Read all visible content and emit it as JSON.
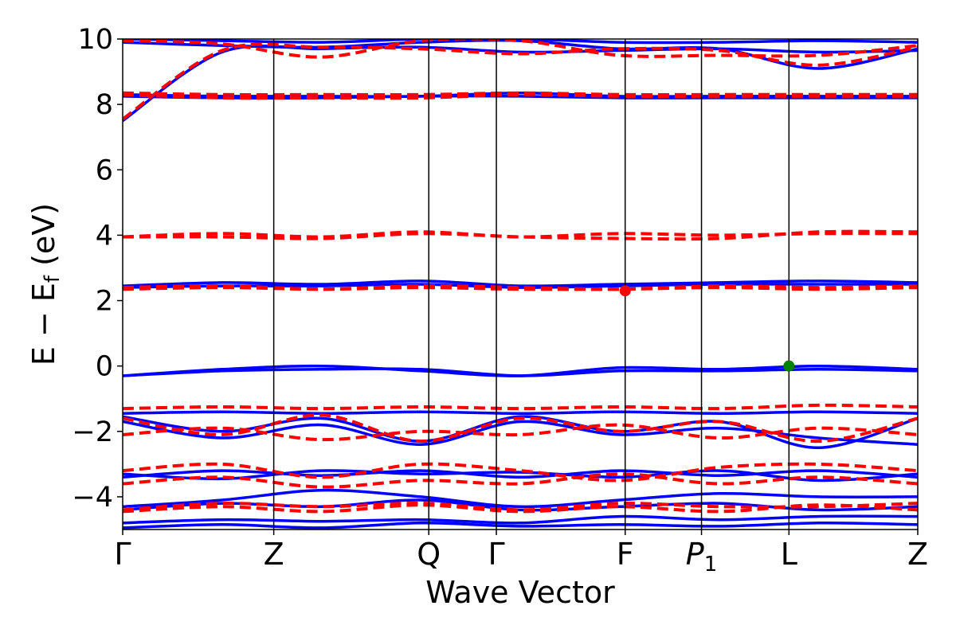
{
  "chart_data": {
    "type": "line",
    "title": "",
    "xlabel": "Wave Vector",
    "ylabel": "E − E",
    "ylabel_sub": "f",
    "ylabel_unit": " (eV)",
    "ylim": [
      -5,
      10
    ],
    "yticks": [
      -4,
      -2,
      0,
      2,
      4,
      6,
      8,
      10
    ],
    "ytick_labels": [
      "−4",
      "−2",
      "0",
      "2",
      "4",
      "6",
      "8",
      "10"
    ],
    "kpoints": [
      {
        "label": "Γ",
        "sub": "",
        "italic": false,
        "x": 0.0
      },
      {
        "label": "Z",
        "sub": "",
        "italic": false,
        "x": 1.9
      },
      {
        "label": "Q",
        "sub": "",
        "italic": false,
        "x": 3.85
      },
      {
        "label": "Γ",
        "sub": "",
        "italic": false,
        "x": 4.7
      },
      {
        "label": "F",
        "sub": "",
        "italic": false,
        "x": 6.32
      },
      {
        "label": "P",
        "sub": "1",
        "italic": true,
        "x": 7.28
      },
      {
        "label": "L",
        "sub": "",
        "italic": false,
        "x": 8.38
      },
      {
        "label": "Z",
        "sub": "",
        "italic": false,
        "x": 10.0
      }
    ],
    "colors": {
      "spin_up": "#0000ff",
      "spin_down": "#ff0000",
      "vbm": "#008000",
      "cbm": "#ff0000"
    },
    "series": [
      {
        "style": "solid",
        "color": "#0000ff",
        "values": [
          7.5,
          9.6,
          9.7,
          9.75,
          9.6,
          9.65,
          9.7,
          9.6,
          9.65
        ]
      },
      {
        "style": "solid",
        "color": "#0000ff",
        "values": [
          9.9,
          9.8,
          9.75,
          9.9,
          9.95,
          9.7,
          9.7,
          9.1,
          9.7
        ]
      },
      {
        "style": "solid",
        "color": "#0000ff",
        "values": [
          10.0,
          9.95,
          9.9,
          10.0,
          10.0,
          9.9,
          9.9,
          9.95,
          9.9
        ]
      },
      {
        "style": "solid",
        "color": "#0000ff",
        "values": [
          8.3,
          8.25,
          8.25,
          8.25,
          8.35,
          8.25,
          8.25,
          8.25,
          8.25
        ]
      },
      {
        "style": "solid",
        "color": "#0000ff",
        "values": [
          8.25,
          8.2,
          8.2,
          8.25,
          8.25,
          8.2,
          8.2,
          8.2,
          8.2
        ]
      },
      {
        "style": "solid",
        "color": "#0000ff",
        "values": [
          2.45,
          2.55,
          2.5,
          2.6,
          2.45,
          2.5,
          2.55,
          2.6,
          2.55
        ]
      },
      {
        "style": "solid",
        "color": "#0000ff",
        "values": [
          2.4,
          2.45,
          2.45,
          2.5,
          2.4,
          2.45,
          2.5,
          2.5,
          2.5
        ]
      },
      {
        "style": "solid",
        "color": "#0000ff",
        "values": [
          -0.3,
          -0.1,
          0.0,
          -0.15,
          -0.3,
          -0.05,
          -0.1,
          0.0,
          -0.1
        ]
      },
      {
        "style": "solid",
        "color": "#0000ff",
        "values": [
          -0.3,
          -0.15,
          -0.1,
          -0.1,
          -0.3,
          -0.15,
          -0.15,
          -0.1,
          -0.15
        ]
      },
      {
        "style": "solid",
        "color": "#0000ff",
        "values": [
          -1.45,
          -1.4,
          -1.45,
          -1.4,
          -1.45,
          -1.4,
          -1.45,
          -1.4,
          -1.45
        ]
      },
      {
        "style": "solid",
        "color": "#0000ff",
        "values": [
          -1.55,
          -2.0,
          -1.6,
          -2.3,
          -1.55,
          -2.0,
          -1.7,
          -2.5,
          -1.6
        ]
      },
      {
        "style": "solid",
        "color": "#0000ff",
        "values": [
          -1.7,
          -2.2,
          -1.8,
          -2.4,
          -1.7,
          -2.1,
          -1.9,
          -2.2,
          -2.4
        ]
      },
      {
        "style": "solid",
        "color": "#0000ff",
        "values": [
          -3.3,
          -3.45,
          -3.2,
          -3.3,
          -3.25,
          -3.4,
          -3.2,
          -3.5,
          -3.3
        ]
      },
      {
        "style": "solid",
        "color": "#0000ff",
        "values": [
          -3.4,
          -3.2,
          -3.35,
          -3.2,
          -3.4,
          -3.2,
          -3.35,
          -3.2,
          -3.4
        ]
      },
      {
        "style": "solid",
        "color": "#0000ff",
        "values": [
          -4.3,
          -4.1,
          -3.8,
          -4.0,
          -4.3,
          -4.1,
          -3.9,
          -4.0,
          -4.0
        ]
      },
      {
        "style": "solid",
        "color": "#0000ff",
        "values": [
          -4.4,
          -4.2,
          -4.3,
          -4.1,
          -4.4,
          -4.3,
          -4.2,
          -4.4,
          -4.3
        ]
      },
      {
        "style": "solid",
        "color": "#0000ff",
        "values": [
          -4.8,
          -4.7,
          -4.75,
          -4.7,
          -4.8,
          -4.6,
          -4.7,
          -4.6,
          -4.6
        ]
      },
      {
        "style": "solid",
        "color": "#0000ff",
        "values": [
          -4.95,
          -4.85,
          -4.95,
          -4.8,
          -4.9,
          -4.85,
          -4.9,
          -4.8,
          -4.85
        ]
      },
      {
        "style": "dashed",
        "color": "#ff0000",
        "values": [
          7.55,
          9.65,
          9.75,
          9.7,
          9.55,
          9.7,
          9.65,
          9.2,
          9.75
        ]
      },
      {
        "style": "dashed",
        "color": "#ff0000",
        "values": [
          9.95,
          9.85,
          9.45,
          9.95,
          9.95,
          9.5,
          9.5,
          9.5,
          9.8
        ]
      },
      {
        "style": "dashed",
        "color": "#ff0000",
        "values": [
          8.35,
          8.3,
          8.3,
          8.3,
          8.35,
          8.3,
          8.3,
          8.3,
          8.3
        ]
      },
      {
        "style": "dashed",
        "color": "#ff0000",
        "values": [
          8.3,
          8.2,
          8.2,
          8.2,
          8.3,
          8.25,
          8.25,
          8.25,
          8.25
        ]
      },
      {
        "style": "dashed",
        "color": "#ff0000",
        "values": [
          3.95,
          4.05,
          3.95,
          4.1,
          3.95,
          4.05,
          4.0,
          4.05,
          4.05
        ]
      },
      {
        "style": "dashed",
        "color": "#ff0000",
        "values": [
          3.95,
          3.95,
          3.9,
          4.05,
          3.95,
          3.9,
          3.9,
          4.1,
          4.1
        ]
      },
      {
        "style": "dashed",
        "color": "#ff0000",
        "values": [
          2.4,
          2.45,
          2.35,
          2.45,
          2.4,
          2.35,
          2.45,
          2.4,
          2.45
        ]
      },
      {
        "style": "dashed",
        "color": "#ff0000",
        "values": [
          2.35,
          2.4,
          2.35,
          2.4,
          2.35,
          2.35,
          2.4,
          2.35,
          2.4
        ]
      },
      {
        "style": "dashed",
        "color": "#ff0000",
        "values": [
          -1.3,
          -1.25,
          -1.3,
          -1.25,
          -1.3,
          -1.25,
          -1.3,
          -1.2,
          -1.25
        ]
      },
      {
        "style": "dashed",
        "color": "#ff0000",
        "values": [
          -2.1,
          -1.9,
          -2.25,
          -2.0,
          -2.1,
          -1.8,
          -2.2,
          -1.9,
          -2.1
        ]
      },
      {
        "style": "dashed",
        "color": "#ff0000",
        "values": [
          -1.6,
          -2.1,
          -1.5,
          -2.3,
          -1.6,
          -2.0,
          -1.7,
          -2.3,
          -1.6
        ]
      },
      {
        "style": "dashed",
        "color": "#ff0000",
        "values": [
          -3.2,
          -3.0,
          -3.4,
          -3.0,
          -3.2,
          -3.5,
          -3.1,
          -3.0,
          -3.2
        ]
      },
      {
        "style": "dashed",
        "color": "#ff0000",
        "values": [
          -3.6,
          -3.4,
          -3.7,
          -3.5,
          -3.6,
          -3.3,
          -3.6,
          -3.4,
          -3.6
        ]
      },
      {
        "style": "dashed",
        "color": "#ff0000",
        "values": [
          -4.4,
          -4.2,
          -4.3,
          -4.2,
          -4.4,
          -4.2,
          -4.3,
          -4.3,
          -4.2
        ]
      },
      {
        "style": "dashed",
        "color": "#ff0000",
        "values": [
          -4.45,
          -4.3,
          -4.45,
          -4.25,
          -4.45,
          -4.3,
          -4.45,
          -4.25,
          -4.4
        ]
      }
    ],
    "markers": [
      {
        "name": "vbm-marker",
        "x": 8.38,
        "y": 0.0,
        "color": "#008000"
      },
      {
        "name": "cbm-marker",
        "x": 6.32,
        "y": 2.3,
        "color": "#ff0000"
      }
    ],
    "xlim": [
      0,
      10
    ],
    "grid": false,
    "legend": "none"
  }
}
